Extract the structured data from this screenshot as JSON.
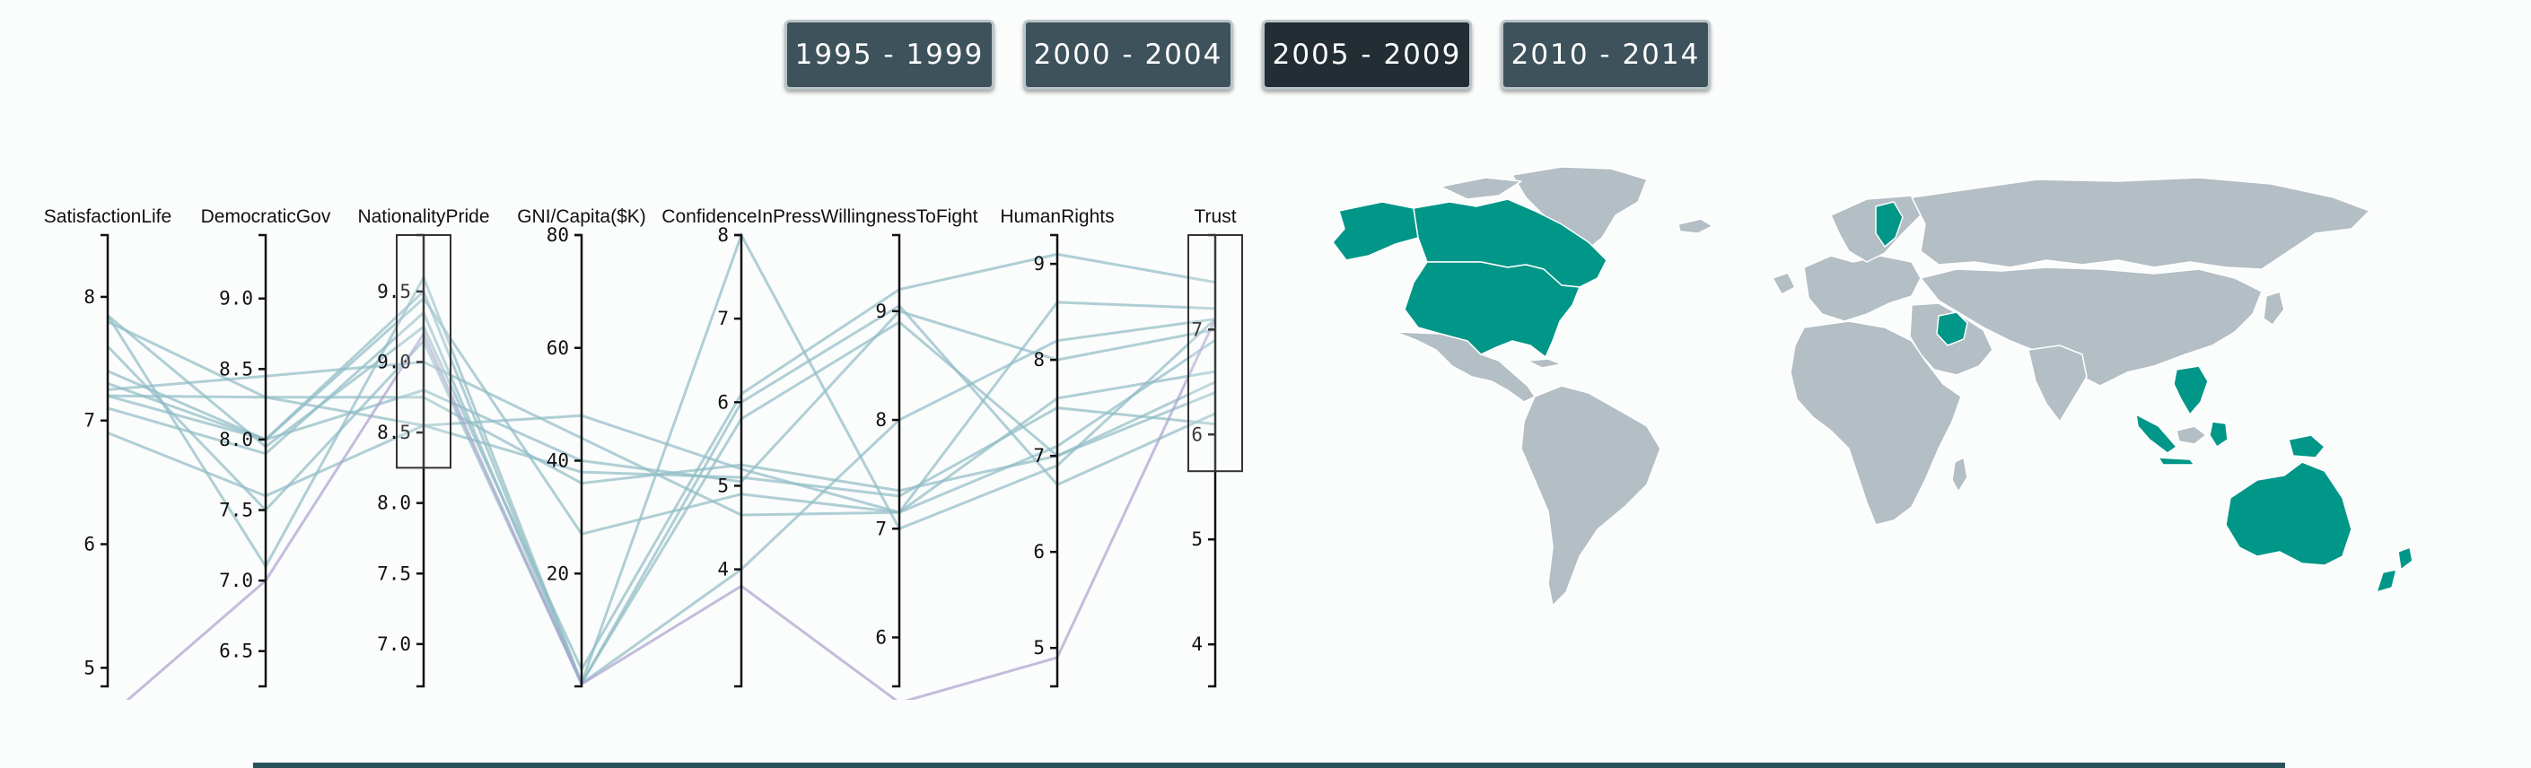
{
  "buttons": [
    {
      "label": "1995 - 1999",
      "active": false
    },
    {
      "label": "2000 - 2004",
      "active": false
    },
    {
      "label": "2005 - 2009",
      "active": true
    },
    {
      "label": "2010 - 2014",
      "active": false
    }
  ],
  "colors": {
    "line": "#8fbcc4",
    "line_alt": "#a9a3cf",
    "map_land": "#b3bec5",
    "map_selected": "#009688",
    "map_border": "#ffffff",
    "button_bg": "#3e525c",
    "button_active_bg": "#222e33"
  },
  "chart_data": {
    "type": "parallel_coordinates",
    "axes": [
      {
        "name": "SatisfactionLife",
        "domain": [
          4.85,
          8.5
        ],
        "ticks": [
          5,
          6,
          7,
          8
        ],
        "tick_labels": [
          "5",
          "6",
          "7",
          "8"
        ]
      },
      {
        "name": "DemocraticGov",
        "domain": [
          6.25,
          9.45
        ],
        "ticks": [
          6.5,
          7.0,
          7.5,
          8.0,
          8.5,
          9.0
        ],
        "tick_labels": [
          "6.5",
          "7.0",
          "7.5",
          "8.0",
          "8.5",
          "9.0"
        ]
      },
      {
        "name": "NationalityPride",
        "domain": [
          6.7,
          9.9
        ],
        "ticks": [
          7.0,
          7.5,
          8.0,
          8.5,
          9.0,
          9.5
        ],
        "tick_labels": [
          "7.0",
          "7.5",
          "8.0",
          "8.5",
          "9.0",
          "9.5"
        ],
        "brush": [
          8.25,
          9.9
        ]
      },
      {
        "name": "GNI/Capita($K)",
        "domain": [
          0,
          80
        ],
        "ticks": [
          20,
          40,
          60,
          80
        ],
        "tick_labels": [
          "20",
          "40",
          "60",
          "80"
        ]
      },
      {
        "name": "ConfidenceInPress",
        "domain": [
          2.6,
          8
        ],
        "ticks": [
          4,
          5,
          6,
          7,
          8
        ],
        "tick_labels": [
          "4",
          "5",
          "6",
          "7",
          "8"
        ]
      },
      {
        "name": "WillingnessToFight",
        "domain": [
          5.55,
          9.7
        ],
        "ticks": [
          6,
          7,
          8,
          9
        ],
        "tick_labels": [
          "6",
          "7",
          "8",
          "9"
        ]
      },
      {
        "name": "HumanRights",
        "domain": [
          4.6,
          9.3
        ],
        "ticks": [
          5,
          6,
          7,
          8,
          9
        ],
        "tick_labels": [
          "5",
          "6",
          "7",
          "8",
          "9"
        ]
      },
      {
        "name": "Trust",
        "domain": [
          3.6,
          7.9
        ],
        "ticks": [
          4,
          5,
          6,
          7
        ],
        "tick_labels": [
          "4",
          "5",
          "6",
          "7"
        ],
        "brush": [
          5.65,
          7.9
        ]
      }
    ],
    "series": [
      {
        "values": [
          7.85,
          7.95,
          9.25,
          3,
          6.1,
          9.2,
          9.1,
          7.45
        ],
        "alt": false
      },
      {
        "values": [
          7.8,
          8.3,
          8.55,
          48,
          5.2,
          7.15,
          8.6,
          7.2
        ],
        "alt": false
      },
      {
        "values": [
          7.3,
          8.0,
          8.8,
          40,
          5.05,
          9.0,
          8.0,
          7.0
        ],
        "alt": false
      },
      {
        "values": [
          7.25,
          8.45,
          9.0,
          44,
          4.65,
          7.15,
          7.1,
          6.9
        ],
        "alt": false
      },
      {
        "values": [
          7.2,
          8.0,
          9.45,
          27,
          4.9,
          7.15,
          7.6,
          6.6
        ],
        "alt": false
      },
      {
        "values": [
          7.2,
          8.3,
          8.75,
          36,
          5.25,
          7.35,
          7.0,
          6.4
        ],
        "alt": false
      },
      {
        "values": [
          6.9,
          7.6,
          8.55,
          38,
          5.1,
          7.3,
          7.5,
          6.1
        ],
        "alt": false
      },
      {
        "values": [
          7.1,
          7.9,
          9.35,
          0.6,
          5.8,
          8.9,
          7.0,
          6.5
        ],
        "alt": false
      },
      {
        "values": [
          7.85,
          7.1,
          9.6,
          0.6,
          8.0,
          7.0,
          6.9,
          7.1
        ],
        "alt": false
      },
      {
        "values": [
          7.6,
          7.5,
          9.15,
          0.5,
          6.0,
          9.05,
          6.7,
          6.2
        ],
        "alt": false
      },
      {
        "values": [
          7.4,
          8.0,
          9.5,
          0.5,
          4.0,
          8.0,
          8.2,
          7.1
        ],
        "alt": false
      },
      {
        "values": [
          4.6,
          7.0,
          9.2,
          0.4,
          3.8,
          5.4,
          4.9,
          7.1
        ],
        "alt": true
      }
    ]
  }
}
